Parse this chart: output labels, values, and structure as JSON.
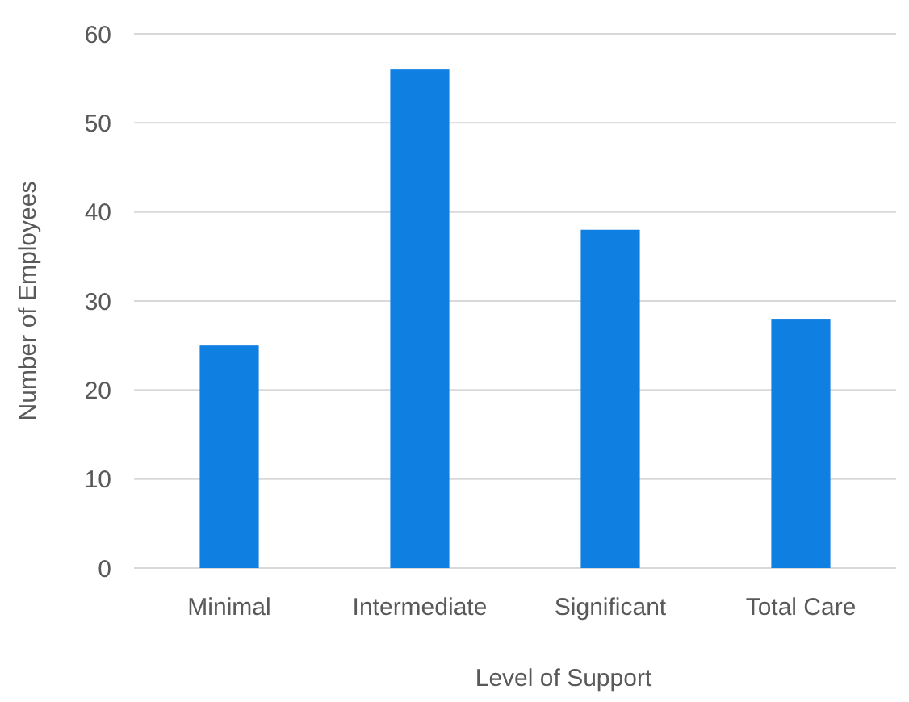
{
  "chart_data": {
    "type": "bar",
    "xlabel": "Level of Support",
    "ylabel": "Number of Employees",
    "categories": [
      "Minimal",
      "Intermediate",
      "Significant",
      "Total Care"
    ],
    "values": [
      25,
      56,
      38,
      28
    ],
    "color": "#0f7fe2",
    "ylim": [
      0,
      60
    ],
    "yticks": [
      0,
      10,
      20,
      30,
      40,
      50,
      60
    ],
    "grid": "y"
  }
}
